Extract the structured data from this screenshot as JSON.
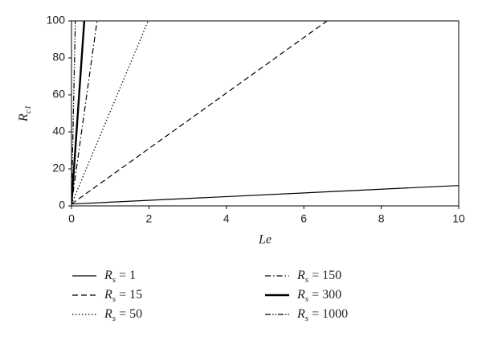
{
  "chart_data": {
    "type": "line",
    "xlabel": "Le",
    "ylabel": "Rc1",
    "xlim": [
      0,
      10
    ],
    "xticks": [
      0,
      2,
      4,
      6,
      8,
      10
    ],
    "ylim": [
      0,
      100
    ],
    "yticks": [
      0,
      20,
      40,
      60,
      80,
      100
    ],
    "series": [
      {
        "name": "Rs = 1",
        "color": "#000000",
        "dash": "none",
        "width": 1.2,
        "x": [
          0,
          10
        ],
        "values": [
          1,
          11
        ]
      },
      {
        "name": "Rs = 15",
        "color": "#000000",
        "dash": "7,4",
        "width": 1.2,
        "x": [
          0,
          6.6
        ],
        "values": [
          1,
          100
        ]
      },
      {
        "name": "Rs = 50",
        "color": "#000000",
        "dash": "1.5,2.5",
        "width": 1.2,
        "x": [
          0,
          1.98
        ],
        "values": [
          1,
          100
        ]
      },
      {
        "name": "Rs = 150",
        "color": "#000000",
        "dash": "7,3,1.5,3",
        "width": 1.2,
        "x": [
          0,
          0.66
        ],
        "values": [
          1,
          100
        ]
      },
      {
        "name": "Rs = 300",
        "color": "#000000",
        "dash": "none",
        "width": 2.4,
        "x": [
          0,
          0.33
        ],
        "values": [
          1,
          100
        ]
      },
      {
        "name": "Rs = 1000",
        "color": "#000000",
        "dash": "7,2,1.5,2,1.5,2",
        "width": 1.2,
        "x": [
          0,
          0.099
        ],
        "values": [
          1,
          100
        ]
      }
    ]
  }
}
